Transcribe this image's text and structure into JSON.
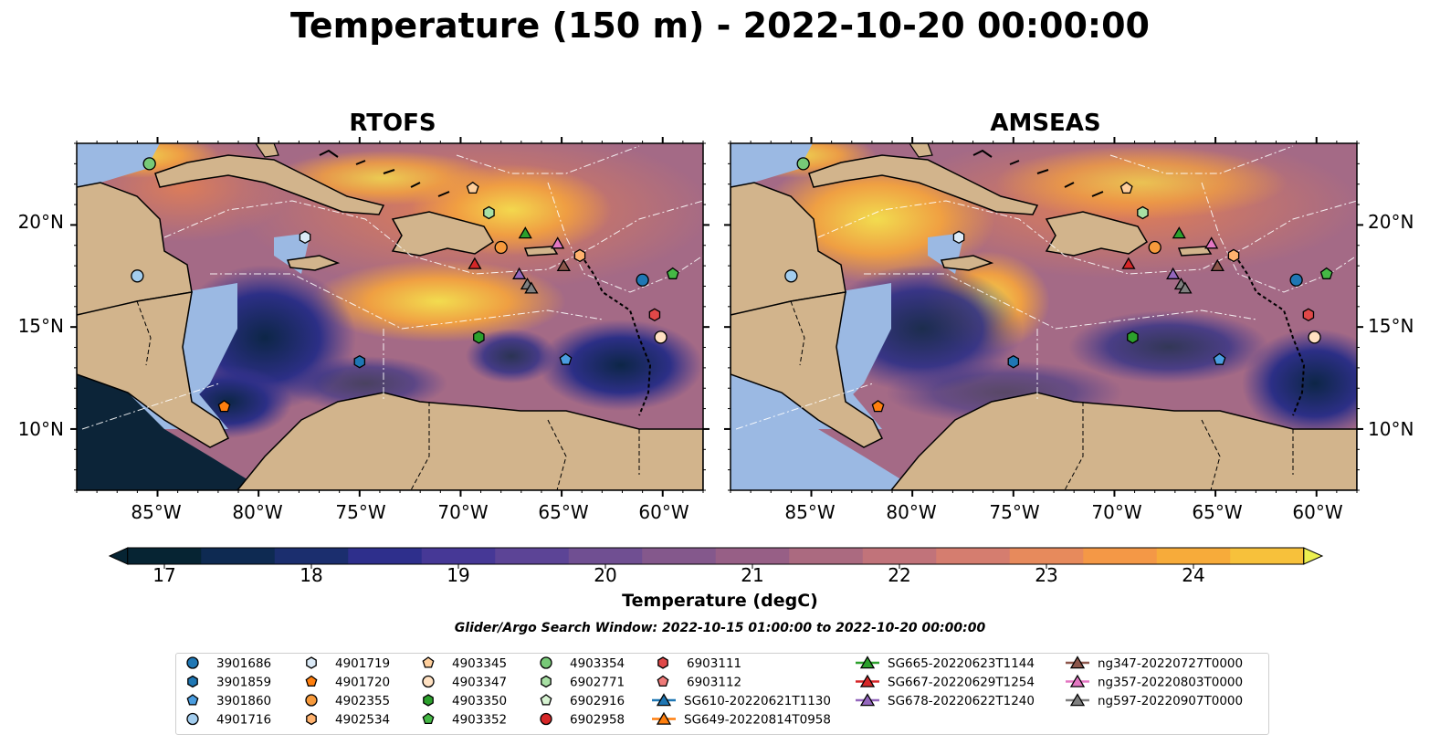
{
  "title": "Temperature (150 m) - 2022-10-20 00:00:00",
  "panels": [
    {
      "title": "RTOFS"
    },
    {
      "title": "AMSEAS"
    }
  ],
  "axes": {
    "lon_ticks": [
      "85°W",
      "80°W",
      "75°W",
      "70°W",
      "65°W",
      "60°W"
    ],
    "lat_ticks": [
      "20°N",
      "15°N",
      "10°N"
    ],
    "lon_range": [
      -89,
      -58
    ],
    "lat_range": [
      7,
      24
    ]
  },
  "colorbar": {
    "label": "Temperature (degC)",
    "ticks": [
      "17",
      "18",
      "19",
      "20",
      "21",
      "22",
      "23",
      "24"
    ],
    "range": [
      16.75,
      24.5
    ],
    "extend": "both",
    "colors": [
      "#062433",
      "#0e2a52",
      "#1b2e6e",
      "#2e2f8c",
      "#463896",
      "#5c4496",
      "#704f92",
      "#84588c",
      "#975f86",
      "#ab6a80",
      "#c1737a",
      "#d57d6f",
      "#e78a5c",
      "#f49846",
      "#f7ab3a",
      "#f7c13b",
      "#f3d845",
      "#ecf050"
    ]
  },
  "search_window": "Glider/Argo Search Window: 2022-10-15 01:00:00 to 2022-10-20 00:00:00",
  "legend": {
    "columns": [
      [
        {
          "label": "3901686",
          "shape": "circle",
          "color": "#1f77b4"
        },
        {
          "label": "3901859",
          "shape": "hexagon",
          "color": "#1f77b4"
        },
        {
          "label": "3901860",
          "shape": "pentagon",
          "color": "#4a9de0"
        },
        {
          "label": "4901716",
          "shape": "circle",
          "color": "#a3cdee"
        }
      ],
      [
        {
          "label": "4901719",
          "shape": "hexagon",
          "color": "#dbeaf7"
        },
        {
          "label": "4901720",
          "shape": "pentagon",
          "color": "#ff7f0e"
        },
        {
          "label": "4902355",
          "shape": "circle",
          "color": "#f79a3c"
        },
        {
          "label": "4902534",
          "shape": "hexagon",
          "color": "#ffb26e"
        }
      ],
      [
        {
          "label": "4903345",
          "shape": "pentagon",
          "color": "#ffcf9c"
        },
        {
          "label": "4903347",
          "shape": "circle",
          "color": "#ffe1c2"
        },
        {
          "label": "4903350",
          "shape": "hexagon",
          "color": "#2ca02c"
        },
        {
          "label": "4903352",
          "shape": "pentagon",
          "color": "#45b845"
        }
      ],
      [
        {
          "label": "4903354",
          "shape": "circle",
          "color": "#77c977"
        },
        {
          "label": "6902771",
          "shape": "hexagon",
          "color": "#a8e0a4"
        },
        {
          "label": "6902916",
          "shape": "pentagon",
          "color": "#d7f3d2"
        },
        {
          "label": "6902958",
          "shape": "circle",
          "color": "#d62728"
        }
      ],
      [
        {
          "label": "6903111",
          "shape": "hexagon",
          "color": "#e04848"
        },
        {
          "label": "6903112",
          "shape": "pentagon",
          "color": "#ef7a78"
        },
        {
          "label": "SG610-20220621T1130",
          "shape": "triangle",
          "color": "#1f77b4",
          "line": true
        },
        {
          "label": "SG649-20220814T0958",
          "shape": "triangle",
          "color": "#ff7f0e",
          "line": true
        }
      ],
      [
        {
          "label": "SG665-20220623T1144",
          "shape": "triangle",
          "color": "#2ca02c",
          "line": true
        },
        {
          "label": "SG667-20220629T1254",
          "shape": "triangle",
          "color": "#d62728",
          "line": true
        },
        {
          "label": "SG678-20220622T1240",
          "shape": "triangle",
          "color": "#9467bd",
          "line": true
        }
      ],
      [
        {
          "label": "ng347-20220727T0000",
          "shape": "triangle",
          "color": "#8c564b",
          "line": true
        },
        {
          "label": "ng357-20220803T0000",
          "shape": "triangle",
          "color": "#e377c2",
          "line": true
        },
        {
          "label": "ng597-20220907T0000",
          "shape": "triangle",
          "color": "#7f7f7f",
          "line": true
        }
      ]
    ]
  },
  "markers": [
    {
      "lon": -85.4,
      "lat": 23.0,
      "shape": "circle",
      "color": "#77c977"
    },
    {
      "lon": -77.7,
      "lat": 19.4,
      "shape": "hexagon",
      "color": "#dbeaf7"
    },
    {
      "lon": -86.0,
      "lat": 17.5,
      "shape": "circle",
      "color": "#a3cdee"
    },
    {
      "lon": -69.4,
      "lat": 21.8,
      "shape": "pentagon",
      "color": "#ffcf9c"
    },
    {
      "lon": -68.6,
      "lat": 20.6,
      "shape": "hexagon",
      "color": "#a8e0a4"
    },
    {
      "lon": -68.0,
      "lat": 18.9,
      "shape": "circle",
      "color": "#f79a3c"
    },
    {
      "lon": -66.8,
      "lat": 19.6,
      "shape": "triangle",
      "color": "#2ca02c"
    },
    {
      "lon": -69.3,
      "lat": 18.1,
      "shape": "triangle",
      "color": "#d62728"
    },
    {
      "lon": -67.1,
      "lat": 17.6,
      "shape": "triangle",
      "color": "#9467bd"
    },
    {
      "lon": -66.7,
      "lat": 17.1,
      "shape": "triangle",
      "color": "#7f7f7f"
    },
    {
      "lon": -66.5,
      "lat": 16.9,
      "shape": "triangle",
      "color": "#7f7f7f"
    },
    {
      "lon": -65.2,
      "lat": 19.1,
      "shape": "triangle",
      "color": "#e377c2"
    },
    {
      "lon": -64.1,
      "lat": 18.5,
      "shape": "hexagon",
      "color": "#ffb26e"
    },
    {
      "lon": -64.9,
      "lat": 18.0,
      "shape": "triangle",
      "color": "#8c564b"
    },
    {
      "lon": -61.0,
      "lat": 17.3,
      "shape": "circle",
      "color": "#1f77b4"
    },
    {
      "lon": -59.5,
      "lat": 17.6,
      "shape": "pentagon",
      "color": "#45b845"
    },
    {
      "lon": -60.4,
      "lat": 15.6,
      "shape": "hexagon",
      "color": "#e04848"
    },
    {
      "lon": -60.1,
      "lat": 14.5,
      "shape": "circle",
      "color": "#ffe1c2"
    },
    {
      "lon": -69.1,
      "lat": 14.5,
      "shape": "hexagon",
      "color": "#2ca02c"
    },
    {
      "lon": -75.0,
      "lat": 13.3,
      "shape": "hexagon",
      "color": "#1f77b4"
    },
    {
      "lon": -64.8,
      "lat": 13.4,
      "shape": "pentagon",
      "color": "#4a9de0"
    },
    {
      "lon": -81.7,
      "lat": 11.1,
      "shape": "pentagon",
      "color": "#ff7f0e"
    }
  ]
}
